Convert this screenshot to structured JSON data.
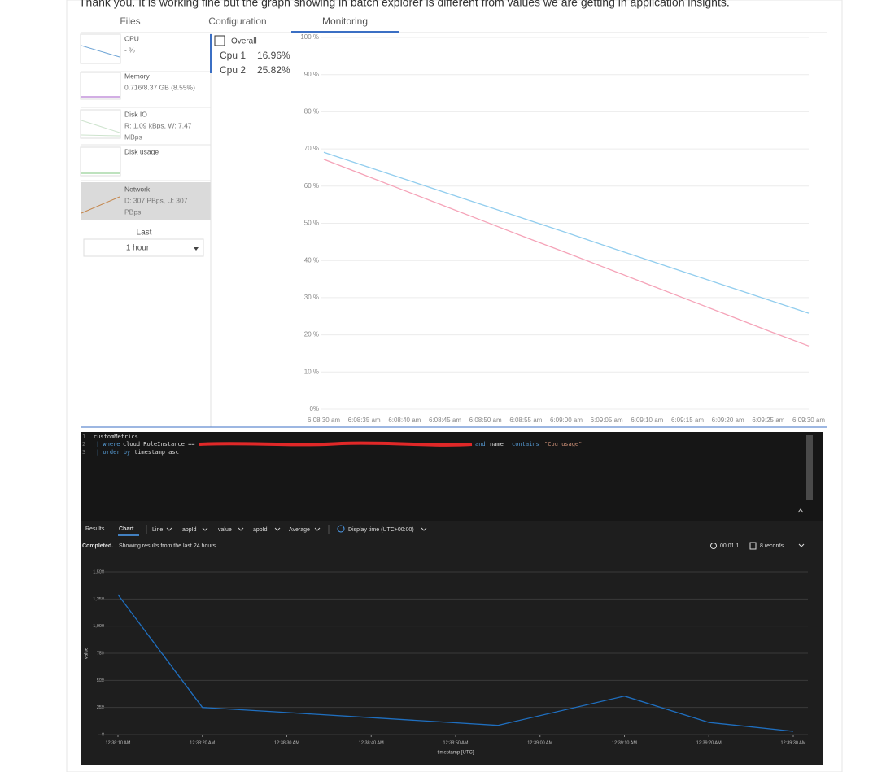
{
  "post_text": "Thank you. It is working fine but the graph showing in batch explorer is different from values we are getting in application insights.",
  "tabs": [
    "Files",
    "Configuration",
    "Monitoring"
  ],
  "metrics": [
    {
      "name": "CPU",
      "lines": [
        "- %"
      ]
    },
    {
      "name": "Memory",
      "lines": [
        "0.716/8.37 GB (8.55%)"
      ]
    },
    {
      "name": "Disk IO",
      "lines": [
        "R: 1.09 kBps, W: 7.47",
        "MBps"
      ]
    },
    {
      "name": "Disk usage",
      "lines": []
    },
    {
      "name": "Network",
      "lines": [
        "D: 307 PBps, U: 307",
        "PBps"
      ]
    }
  ],
  "last_label": "Last",
  "last_value": "1 hour",
  "overall": "Overall",
  "query": {
    "line_numbers": [
      "1",
      "2",
      "3"
    ],
    "line1": "customMetrics",
    "line2_kw": "| where",
    "line2_field": "cloud_RoleInstance ==",
    "line2_and": "and",
    "line2_name": "name",
    "line2_op": "contains",
    "line2_str": "\"Cpu usage\"",
    "line3_kw": "| order by",
    "line3_field": "timestamp asc"
  },
  "toolbar": [
    "Results",
    "Chart",
    "Line",
    "appId",
    "value",
    "appId",
    "Average",
    "Display time (UTC+00:00)"
  ],
  "status_bold": "Completed.",
  "status_text": "Showing results from the last 24 hours.",
  "duration": "00:01.1",
  "records": "8 records",
  "chart_data": [
    {
      "type": "line",
      "categories": [
        "6:08:30 am",
        "6:08:35 am",
        "6:08:40 am",
        "6:08:45 am",
        "6:08:50 am",
        "6:08:55 am",
        "6:09:00 am",
        "6:09:05 am",
        "6:09:10 am",
        "6:09:15 am",
        "6:09:20 am",
        "6:09:25 am",
        "6:09:30 am"
      ],
      "series": [
        {
          "name": "Cpu 1",
          "current": "16.96%",
          "color": "#f5a3b8",
          "values": [
            67.2,
            63.0,
            58.8,
            54.6,
            50.4,
            46.2,
            42.1,
            37.9,
            33.7,
            29.5,
            25.3,
            21.1,
            17.0
          ]
        },
        {
          "name": "Cpu 2",
          "current": "25.82%",
          "color": "#91cdee",
          "values": [
            69.1,
            65.5,
            61.9,
            58.3,
            54.7,
            51.1,
            47.5,
            43.8,
            40.2,
            36.6,
            33.0,
            29.4,
            25.8
          ]
        }
      ],
      "ylim": [
        0,
        100
      ],
      "yticks": [
        {
          "value": 0,
          "label": "0%"
        },
        {
          "value": 10,
          "label": "10 %"
        },
        {
          "value": 20,
          "label": "20 %"
        },
        {
          "value": 30,
          "label": "30 %"
        },
        {
          "value": 40,
          "label": "40 %"
        },
        {
          "value": 50,
          "label": "50 %"
        },
        {
          "value": 60,
          "label": "60 %"
        },
        {
          "value": 70,
          "label": "70 %"
        },
        {
          "value": 80,
          "label": "80 %"
        },
        {
          "value": 90,
          "label": "90 %"
        },
        {
          "value": 100,
          "label": "100 %"
        }
      ],
      "grid": true
    },
    {
      "type": "line",
      "x": [
        "12:38:10 AM",
        "12:38:20 AM",
        "12:38:30 AM",
        "12:38:40 AM",
        "12:38:55 AM",
        "12:39:10 AM",
        "12:39:20 AM",
        "12:39:30 AM"
      ],
      "values": [
        1290,
        250,
        203,
        156,
        85,
        355,
        112,
        30
      ],
      "color": "#1f6fc0",
      "xlim": [
        "12:38:10 AM",
        "12:39:30 AM"
      ],
      "xticks": [
        "12:38:10 AM",
        "12:38:20 AM",
        "12:38:30 AM",
        "12:38:40 AM",
        "12:38:50 AM",
        "12:39:00 AM",
        "12:39:10 AM",
        "12:39:20 AM",
        "12:39:30 AM"
      ],
      "ylim": [
        0,
        1500
      ],
      "yticks": [
        0,
        250,
        500,
        750,
        {
          "value": 1000,
          "label": "1,000"
        },
        {
          "value": 1250,
          "label": "1,250"
        },
        {
          "value": 1500,
          "label": "1,500"
        }
      ],
      "xlabel": "timestamp [UTC]",
      "ylabel": "value",
      "grid": true
    }
  ]
}
